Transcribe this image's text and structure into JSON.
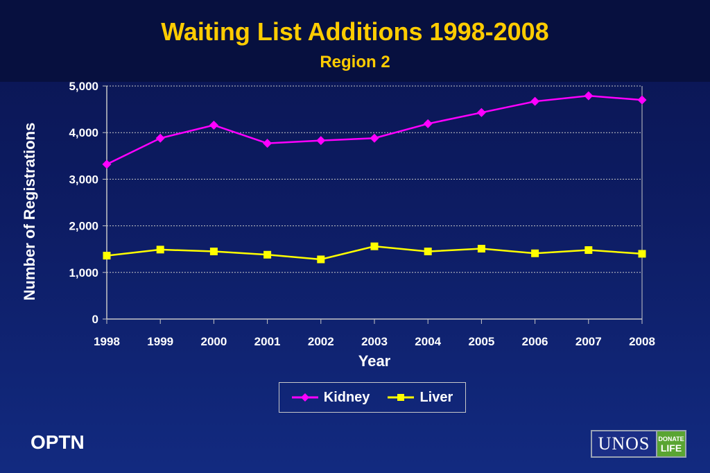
{
  "colors": {
    "title": "#ffcc00",
    "kidney": "#ff00ff",
    "liver": "#ffff00",
    "grid": "#c8c8c8",
    "text": "#ffffff"
  },
  "footer": {
    "left_text": "OPTN",
    "logo_unos": "UNOS",
    "logo_donate": "DONATE",
    "logo_life": "LIFE"
  },
  "chart_data": {
    "type": "line",
    "title": "Waiting List Additions 1998-2008",
    "subtitle": "Region 2",
    "xlabel": "Year",
    "ylabel": "Number of Registrations",
    "x": [
      "1998",
      "1999",
      "2000",
      "2001",
      "2002",
      "2003",
      "2004",
      "2005",
      "2006",
      "2007",
      "2008"
    ],
    "yticks": [
      "0",
      "1,000",
      "2,000",
      "3,000",
      "4,000",
      "5,000"
    ],
    "ylim": [
      0,
      5000
    ],
    "grid": true,
    "legend_position": "bottom",
    "series": [
      {
        "name": "Kidney",
        "marker": "diamond",
        "color": "#ff00ff",
        "values": [
          3320,
          3880,
          4160,
          3770,
          3830,
          3880,
          4190,
          4430,
          4670,
          4790,
          4700
        ]
      },
      {
        "name": "Liver",
        "marker": "square",
        "color": "#ffff00",
        "values": [
          1360,
          1490,
          1450,
          1380,
          1280,
          1560,
          1450,
          1510,
          1410,
          1480,
          1400
        ]
      }
    ]
  }
}
